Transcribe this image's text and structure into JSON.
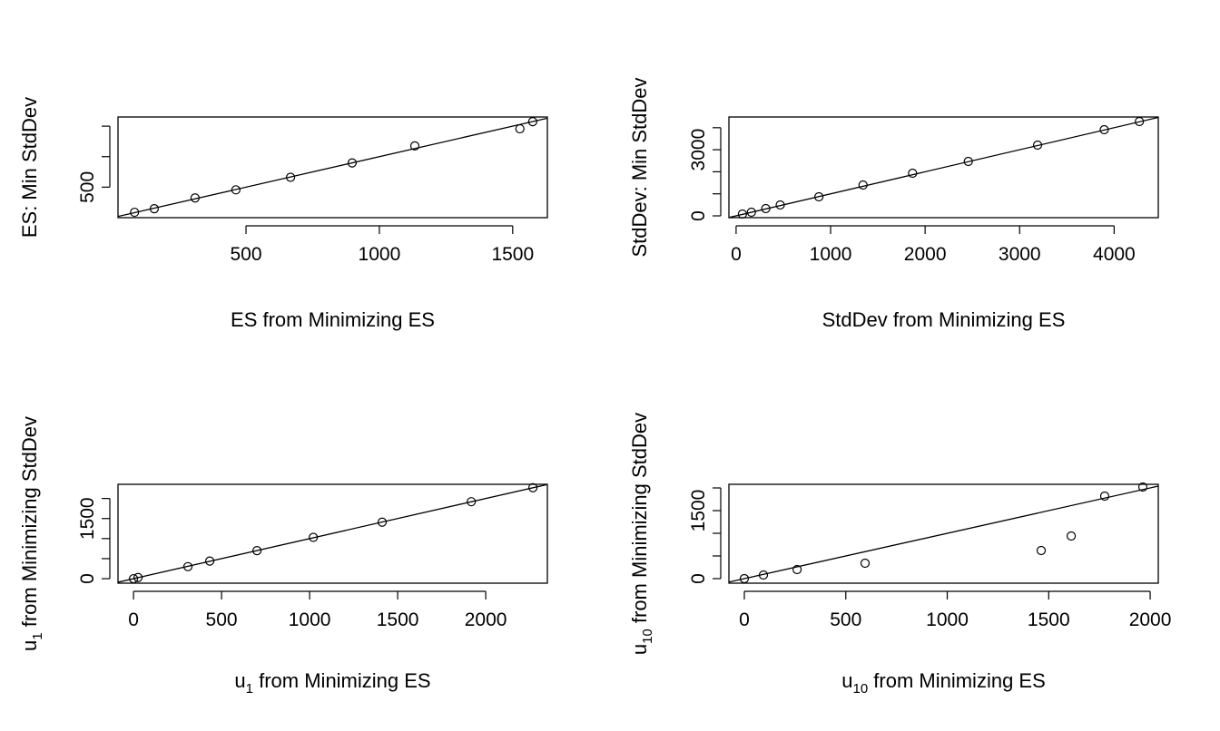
{
  "chart_data": [
    {
      "type": "scatter",
      "xlabel": "ES from Minimizing ES",
      "ylabel": "ES: Min StdDev",
      "xlim": [
        20,
        1630
      ],
      "ylim": [
        0,
        1650
      ],
      "xticks": [
        500,
        1000,
        1500
      ],
      "xtick_labels": [
        "500",
        "1000",
        "1500"
      ],
      "yticks": [
        500,
        1000,
        1500
      ],
      "ytick_labels": [
        "500",
        "",
        ""
      ],
      "reference_line": {
        "intercept": 0,
        "slope": 1
      },
      "x": [
        82,
        156,
        309,
        462,
        667,
        898,
        1133,
        1527,
        1575
      ],
      "y": [
        88,
        147,
        323,
        456,
        662,
        897,
        1176,
        1456,
        1574
      ]
    },
    {
      "type": "scatter",
      "xlabel": "StdDev from Minimizing ES",
      "ylabel": "StdDev: Min StdDev",
      "xlim": [
        -76,
        4467
      ],
      "ylim": [
        -82,
        4486
      ],
      "xticks": [
        0,
        1000,
        2000,
        3000,
        4000
      ],
      "xtick_labels": [
        "0",
        "1000",
        "2000",
        "3000",
        "4000"
      ],
      "yticks": [
        0,
        1000,
        2000,
        3000,
        4000
      ],
      "ytick_labels": [
        "0",
        "",
        "",
        "3000",
        ""
      ],
      "reference_line": {
        "intercept": 0,
        "slope": 1
      },
      "x": [
        67,
        162,
        314,
        467,
        876,
        1343,
        1867,
        2457,
        3190,
        3895,
        4267
      ],
      "y": [
        82,
        165,
        329,
        494,
        864,
        1399,
        1934,
        2469,
        3210,
        3909,
        4280
      ]
    },
    {
      "type": "scatter",
      "xlabel": {
        "base": "u",
        "sub": "1",
        "rest": " from Minimizing ES"
      },
      "ylabel": {
        "base": "u",
        "sub": "1",
        "rest": " from Minimizing StdDev"
      },
      "xlim": [
        -88,
        2350
      ],
      "ylim": [
        -112,
        2354
      ],
      "xticks": [
        0,
        500,
        1000,
        1500,
        2000
      ],
      "xtick_labels": [
        "0",
        "500",
        "1000",
        "1500",
        "2000"
      ],
      "yticks": [
        0,
        500,
        1000,
        1500,
        2000
      ],
      "ytick_labels": [
        "0",
        "",
        "",
        "1500",
        ""
      ],
      "reference_line": {
        "intercept": 0,
        "slope": 1
      },
      "x": [
        0,
        26,
        309,
        433,
        701,
        1021,
        1412,
        1918,
        2268
      ],
      "y": [
        0,
        30,
        300,
        440,
        700,
        1030,
        1410,
        1920,
        2270
      ]
    },
    {
      "type": "scatter",
      "xlabel": {
        "base": "u",
        "sub": "10",
        "rest": " from Minimizing ES"
      },
      "ylabel": {
        "base": "u",
        "sub": "10",
        "rest": " from Minimizing StdDev"
      },
      "xlim": [
        -76,
        2040
      ],
      "ylim": [
        -100,
        2080
      ],
      "xticks": [
        0,
        500,
        1000,
        1500,
        2000
      ],
      "xtick_labels": [
        "0",
        "500",
        "1000",
        "1500",
        "2000"
      ],
      "yticks": [
        0,
        500,
        1000,
        1500,
        2000
      ],
      "ytick_labels": [
        "0",
        "",
        "",
        "1500",
        ""
      ],
      "reference_line": {
        "intercept": 0,
        "slope": 1
      },
      "x": [
        0,
        94,
        260,
        595,
        1463,
        1611,
        1776,
        1964
      ],
      "y": [
        0,
        80,
        200,
        340,
        620,
        940,
        1820,
        2020
      ]
    }
  ]
}
